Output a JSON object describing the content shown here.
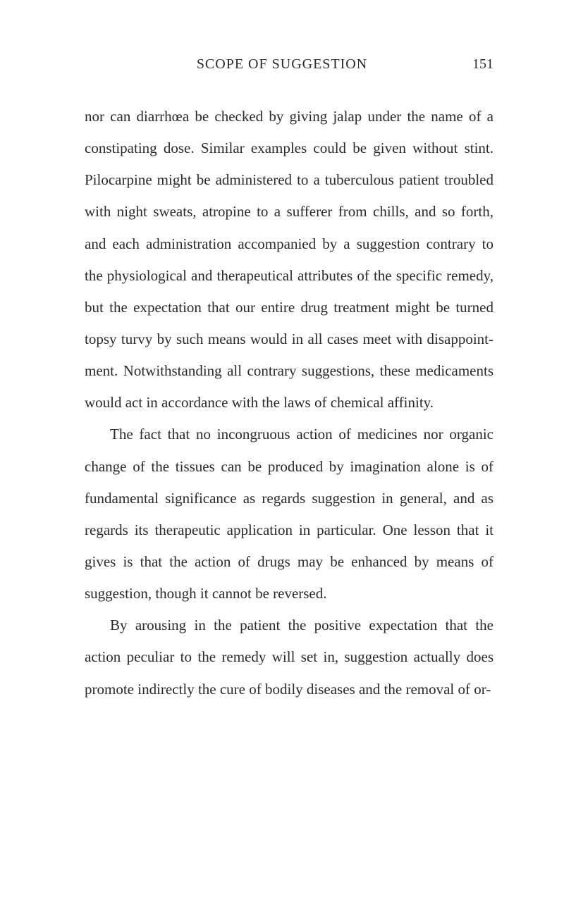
{
  "header": {
    "title": "SCOPE OF SUGGESTION",
    "page_number": "151"
  },
  "paragraphs": {
    "p1": "nor can diarrhœa be checked by giving jalap un­der the name of a constipating dose. Similar exam­ples could be given without stint. Pilocarpine might be administered to a tuberculous patient troubled with night sweats, atropine to a sufferer from chills, and so forth, and each administration accompanied by a suggestion contrary to the physi­ological and therapeutical attributes of the specific remedy, but the expectation that our entire drug treatment might be turned topsy turvy by such means would in all cases meet with disappoint­ment. Notwithstanding all contrary suggestions, these medicaments would act in accordance with the laws of chemical affinity.",
    "p2": "The fact that no incongruous action of medicines nor organic change of the tissues can be produced by imagination alone is of fundamental significance as regards suggestion in general, and as regards its therapeutic application in particular. One les­son that it gives is that the action of drugs may be enhanced by means of suggestion, though it cannot be reversed.",
    "p3": "By arousing in the patient the positive expec­tation that the action peculiar to the remedy will set in, suggestion actually does promote indirectly the cure of bodily diseases and the removal of or-"
  }
}
